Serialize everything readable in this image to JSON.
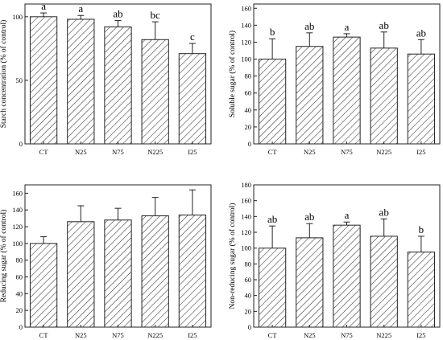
{
  "chart_data": [
    {
      "type": "bar",
      "title": "",
      "xlabel": "",
      "ylabel": "Starch concentration (% of control)",
      "categories": [
        "CT",
        "N25",
        "N75",
        "N225",
        "I25"
      ],
      "values": [
        100,
        98,
        92,
        82,
        71
      ],
      "errors": [
        3,
        3,
        5,
        14,
        8
      ],
      "letters": [
        "a",
        "a",
        "ab",
        "bc",
        "c"
      ],
      "ylim": [
        0,
        110
      ],
      "yticks": [
        0,
        50,
        100
      ]
    },
    {
      "type": "bar",
      "title": "",
      "xlabel": "",
      "ylabel": "Soluble sugar (% of control)",
      "categories": [
        "CT",
        "N25",
        "N75",
        "N225",
        "I25"
      ],
      "values": [
        100,
        115,
        126,
        113,
        106
      ],
      "errors": [
        24,
        16,
        4,
        19,
        17
      ],
      "letters": [
        "b",
        "ab",
        "a",
        "ab",
        "ab"
      ],
      "ylim": [
        0,
        165
      ],
      "yticks": [
        0,
        20,
        40,
        60,
        80,
        100,
        120,
        140,
        160
      ]
    },
    {
      "type": "bar",
      "title": "",
      "xlabel": "",
      "ylabel": "Reducing sugar (% of control)",
      "categories": [
        "CT",
        "N25",
        "N75",
        "N225",
        "I25"
      ],
      "values": [
        100,
        126,
        128,
        133,
        134
      ],
      "errors": [
        8,
        19,
        14,
        22,
        30
      ],
      "letters": [
        "",
        "",
        "",
        "",
        ""
      ],
      "ylim": [
        0,
        170
      ],
      "yticks": [
        0,
        20,
        40,
        60,
        80,
        100,
        120,
        140,
        160
      ]
    },
    {
      "type": "bar",
      "title": "",
      "xlabel": "",
      "ylabel": "Non-reducing sugar (% of control)",
      "categories": [
        "CT",
        "N25",
        "N75",
        "N225",
        "I25"
      ],
      "values": [
        100,
        113,
        129,
        115,
        95
      ],
      "errors": [
        28,
        18,
        4,
        22,
        20
      ],
      "letters": [
        "ab",
        "ab",
        "a",
        "ab",
        "b"
      ],
      "ylim": [
        0,
        180
      ],
      "yticks": [
        0,
        20,
        40,
        60,
        80,
        100,
        120,
        140,
        160,
        180
      ]
    }
  ]
}
